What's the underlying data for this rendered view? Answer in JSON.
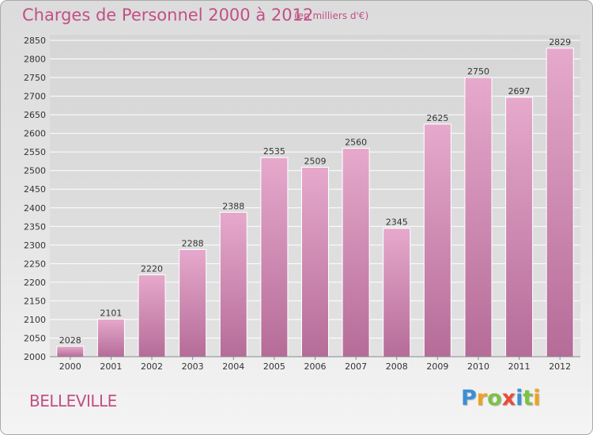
{
  "title": "Charges de Personnel 2000 à 2012",
  "subtitle": "(en milliers d'€)",
  "place": "BELLEVILLE",
  "logo": {
    "text": "Proxiti",
    "letters": [
      "P",
      "r",
      "o",
      "x",
      "i",
      "t",
      "i"
    ],
    "colors": [
      "#3a8fd6",
      "#f0a020",
      "#7cc242",
      "#e84c3d",
      "#3a8fd6",
      "#7cc242",
      "#f0a020"
    ]
  },
  "colors": {
    "title": "#c24f86",
    "bar_top": "#e6a9cc",
    "bar_bottom": "#b56c98",
    "grid": "#ffffff"
  },
  "chart_data": {
    "type": "bar",
    "title": "Charges de Personnel 2000 à 2012",
    "subtitle": "(en milliers d'€)",
    "categories": [
      "2000",
      "2001",
      "2002",
      "2003",
      "2004",
      "2005",
      "2006",
      "2007",
      "2008",
      "2009",
      "2010",
      "2011",
      "2012"
    ],
    "values": [
      2028,
      2101,
      2220,
      2288,
      2388,
      2535,
      2509,
      2560,
      2345,
      2625,
      2750,
      2697,
      2829
    ],
    "value_labels": [
      "2028",
      "2101",
      "2220",
      "2288",
      "2388",
      "2535",
      "2509",
      "2560",
      "2345",
      "2625",
      "2750",
      "2697",
      "2829"
    ],
    "ylim": [
      2000,
      2850
    ],
    "yticks": [
      2000,
      2050,
      2100,
      2150,
      2200,
      2250,
      2300,
      2350,
      2400,
      2450,
      2500,
      2550,
      2600,
      2650,
      2700,
      2750,
      2800,
      2850
    ],
    "grid": true
  }
}
